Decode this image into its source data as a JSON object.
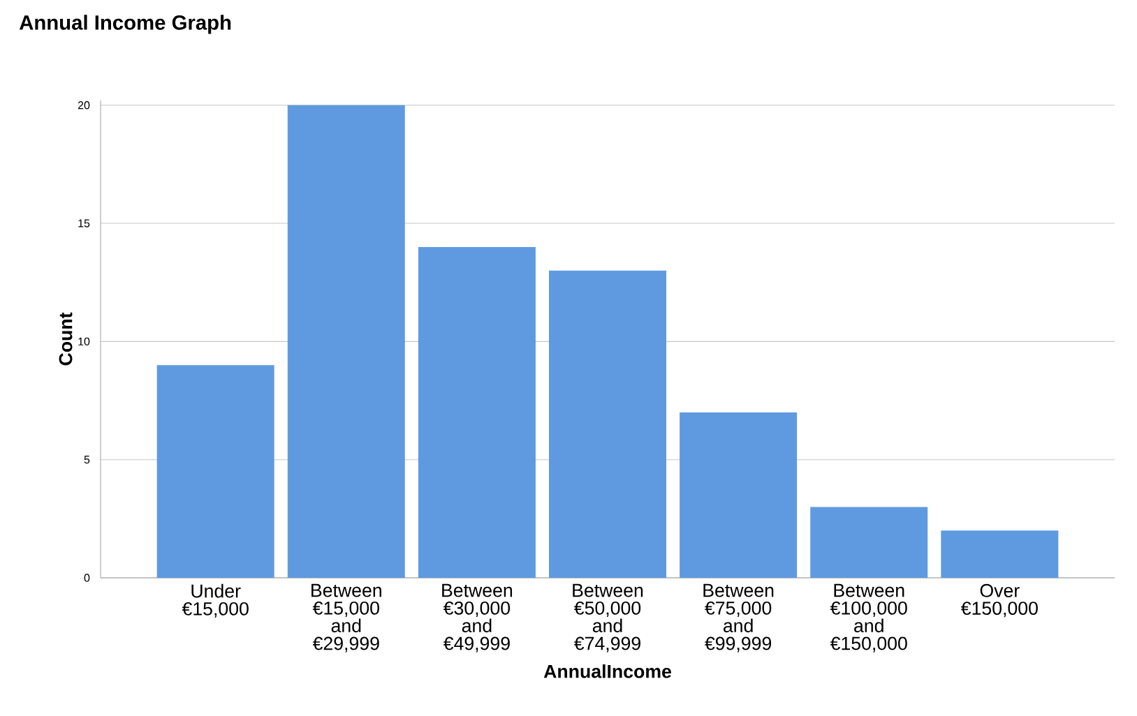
{
  "chart_data": {
    "type": "bar",
    "title": "Annual Income Graph",
    "xlabel": "AnnualIncome",
    "ylabel": "Count",
    "categories": [
      "Under €15,000",
      "Between €15,000 and €29,999",
      "Between €30,000 and €49,999",
      "Between €50,000 and €74,999",
      "Between €75,000 and €99,999",
      "Between €100,000 and €150,000",
      "Over €150,000"
    ],
    "values": [
      9,
      20,
      14,
      13,
      7,
      3,
      2
    ],
    "color": "#5f9ae0",
    "ylim": [
      0,
      20.2
    ],
    "yticks": [
      0,
      5,
      10,
      15,
      20
    ],
    "grid": "y"
  }
}
